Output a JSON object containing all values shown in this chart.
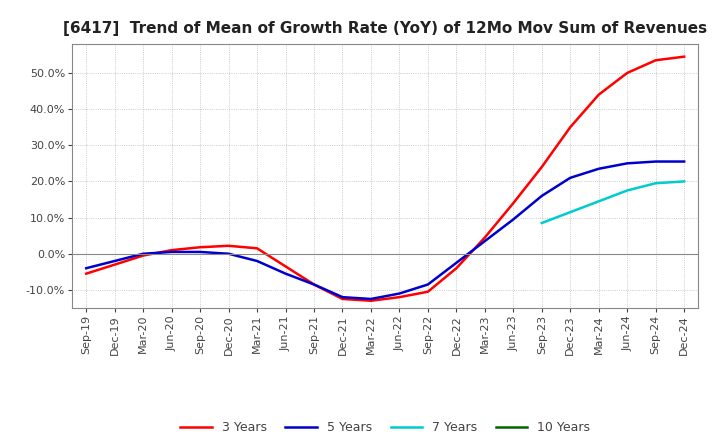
{
  "title": "[6417]  Trend of Mean of Growth Rate (YoY) of 12Mo Mov Sum of Revenues",
  "title_fontsize": 11,
  "background_color": "#ffffff",
  "grid_color": "#aaaaaa",
  "ylim": [
    -15,
    58
  ],
  "yticks": [
    -10,
    0,
    10,
    20,
    30,
    40,
    50
  ],
  "legend_labels": [
    "3 Years",
    "5 Years",
    "7 Years",
    "10 Years"
  ],
  "legend_colors": [
    "#ff0000",
    "#0000cc",
    "#00cccc",
    "#006600"
  ],
  "x_labels": [
    "Sep-19",
    "Dec-19",
    "Mar-20",
    "Jun-20",
    "Sep-20",
    "Dec-20",
    "Mar-21",
    "Jun-21",
    "Sep-21",
    "Dec-21",
    "Mar-22",
    "Jun-22",
    "Sep-22",
    "Dec-22",
    "Mar-23",
    "Jun-23",
    "Sep-23",
    "Dec-23",
    "Mar-24",
    "Jun-24",
    "Sep-24",
    "Dec-24"
  ],
  "series_3y": [
    -5.5,
    -3.0,
    -0.5,
    1.0,
    1.8,
    2.2,
    1.5,
    -3.5,
    -8.5,
    -12.5,
    -13.0,
    -12.0,
    -10.5,
    -4.0,
    4.5,
    14.0,
    24.0,
    35.0,
    44.0,
    50.0,
    53.5,
    54.5
  ],
  "series_5y": [
    -4.0,
    -2.0,
    0.0,
    0.5,
    0.5,
    0.0,
    -2.0,
    -5.5,
    -8.5,
    -12.0,
    -12.5,
    -11.0,
    -8.5,
    -2.5,
    3.5,
    9.5,
    16.0,
    21.0,
    23.5,
    25.0,
    25.5,
    25.5
  ],
  "series_7y": [
    null,
    null,
    null,
    null,
    null,
    null,
    null,
    null,
    null,
    null,
    null,
    null,
    null,
    null,
    null,
    null,
    8.5,
    11.5,
    14.5,
    17.5,
    19.5,
    20.0
  ],
  "series_10y": [
    null,
    null,
    null,
    null,
    null,
    null,
    null,
    null,
    null,
    null,
    null,
    null,
    null,
    null,
    null,
    null,
    null,
    null,
    null,
    null,
    null,
    null
  ]
}
